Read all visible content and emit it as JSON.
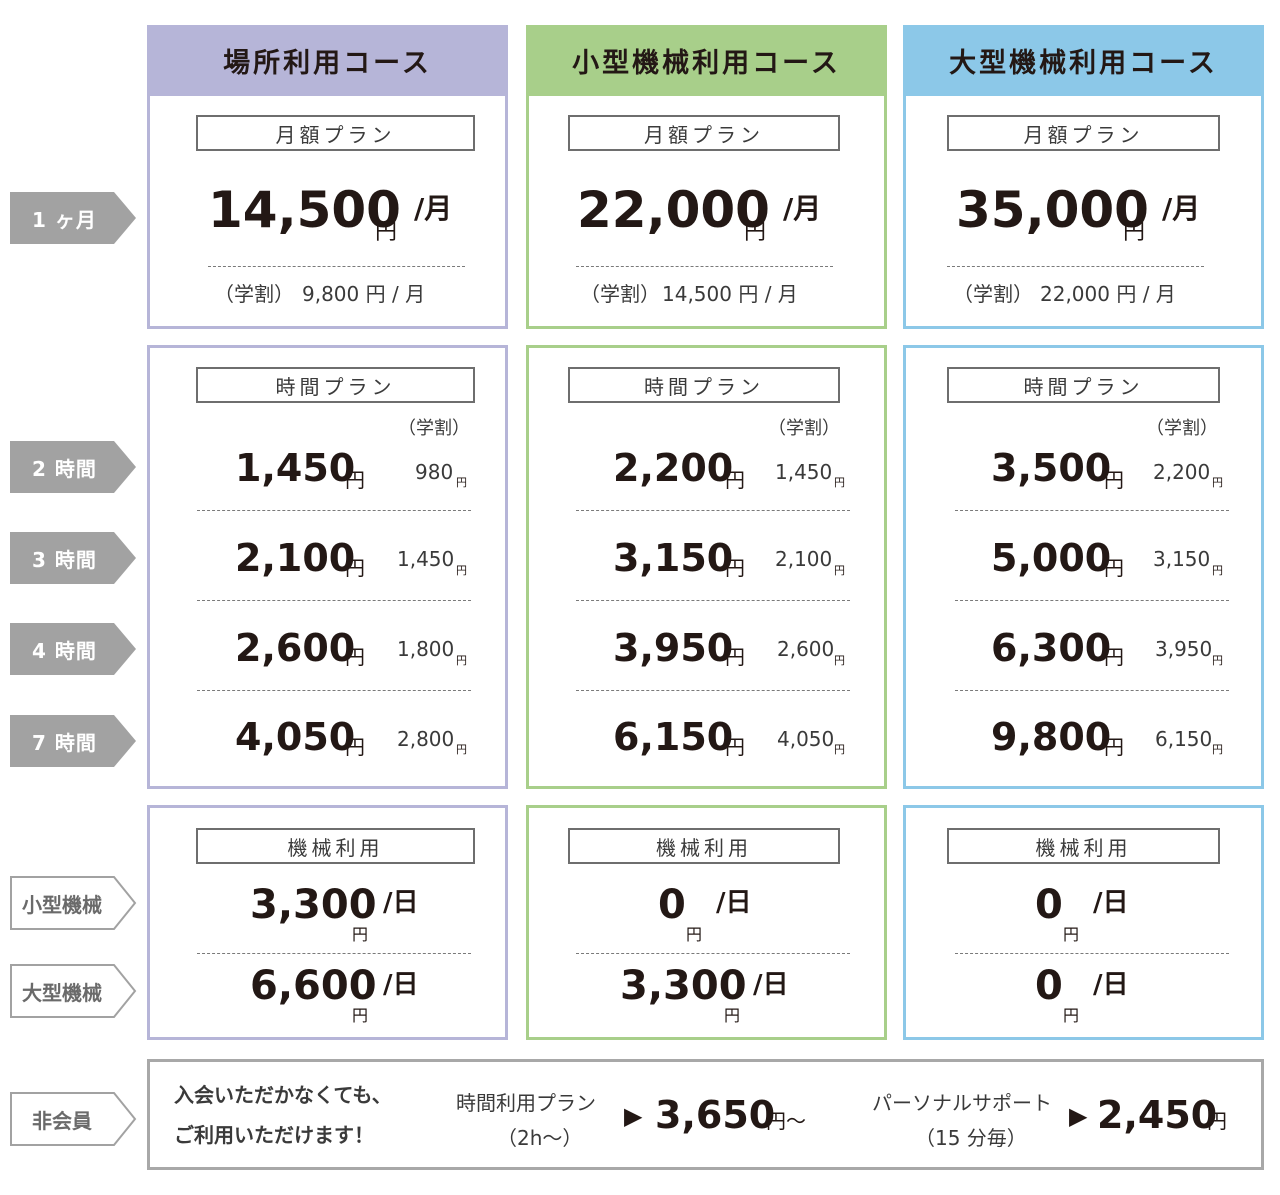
{
  "courses": [
    {
      "header": "場所利用コース",
      "monthly": {
        "plan_label": "月額プラン",
        "price": "14,500",
        "unit": "円",
        "per": "/月",
        "student_label": "（学割）",
        "student_value": "9,800 円 / 月"
      },
      "hourly": {
        "plan_label": "時間プラン",
        "student_header": "（学割）",
        "rows": [
          {
            "price": "1,450",
            "unit": "円",
            "student": "980",
            "student_unit": "円"
          },
          {
            "price": "2,100",
            "unit": "円",
            "student": "1,450",
            "student_unit": "円"
          },
          {
            "price": "2,600",
            "unit": "円",
            "student": "1,800",
            "student_unit": "円"
          },
          {
            "price": "4,050",
            "unit": "円",
            "student": "2,800",
            "student_unit": "円"
          }
        ]
      },
      "machine": {
        "plan_label": "機械利用",
        "rows": [
          {
            "price": "3,300",
            "unit": "円",
            "per": "/日"
          },
          {
            "price": "6,600",
            "unit": "円",
            "per": "/日"
          }
        ]
      }
    },
    {
      "header": "小型機械利用コース",
      "monthly": {
        "plan_label": "月額プラン",
        "price": "22,000",
        "unit": "円",
        "per": "/月",
        "student_label": "（学割）",
        "student_value": "14,500 円 / 月"
      },
      "hourly": {
        "plan_label": "時間プラン",
        "student_header": "（学割）",
        "rows": [
          {
            "price": "2,200",
            "unit": "円",
            "student": "1,450",
            "student_unit": "円"
          },
          {
            "price": "3,150",
            "unit": "円",
            "student": "2,100",
            "student_unit": "円"
          },
          {
            "price": "3,950",
            "unit": "円",
            "student": "2,600",
            "student_unit": "円"
          },
          {
            "price": "6,150",
            "unit": "円",
            "student": "4,050",
            "student_unit": "円"
          }
        ]
      },
      "machine": {
        "plan_label": "機械利用",
        "rows": [
          {
            "price": "0",
            "unit": "円",
            "per": "/日"
          },
          {
            "price": "3,300",
            "unit": "円",
            "per": "/日"
          }
        ]
      }
    },
    {
      "header": "大型機械利用コース",
      "monthly": {
        "plan_label": "月額プラン",
        "price": "35,000",
        "unit": "円",
        "per": "/月",
        "student_label": "（学割）",
        "student_value": "22,000 円 / 月"
      },
      "hourly": {
        "plan_label": "時間プラン",
        "student_header": "（学割）",
        "rows": [
          {
            "price": "3,500",
            "unit": "円",
            "student": "2,200",
            "student_unit": "円"
          },
          {
            "price": "5,000",
            "unit": "円",
            "student": "3,150",
            "student_unit": "円"
          },
          {
            "price": "6,300",
            "unit": "円",
            "student": "3,950",
            "student_unit": "円"
          },
          {
            "price": "9,800",
            "unit": "円",
            "student": "6,150",
            "student_unit": "円"
          }
        ]
      },
      "machine": {
        "plan_label": "機械利用",
        "rows": [
          {
            "price": "0",
            "unit": "円",
            "per": "/日"
          },
          {
            "price": "0",
            "unit": "円",
            "per": "/日"
          }
        ]
      }
    }
  ],
  "row_labels": {
    "month": "1 ヶ月",
    "hours": [
      "2 時間",
      "3 時間",
      "4 時間",
      "7 時間"
    ],
    "machines": [
      "小型機械",
      "大型機械"
    ],
    "non_member": "非会員"
  },
  "non_member": {
    "intro_line1": "入会いただかなくても、",
    "intro_line2": "ご利用いただけます！",
    "hourly_label_line1": "時間利用プラン",
    "hourly_label_line2": "（2h〜）",
    "hourly_arrow": "▶",
    "hourly_price": "3,650",
    "hourly_unit": "円〜",
    "support_label_line1": "パーソナルサポート",
    "support_label_line2": "（15 分毎）",
    "support_arrow": "▶",
    "support_price": "2,450",
    "support_unit": "円"
  },
  "colors": {
    "course_1": "#b6b5d8",
    "course_2": "#a8cf8a",
    "course_3": "#8cc8e8",
    "label_gray": "#a2a2a2"
  }
}
